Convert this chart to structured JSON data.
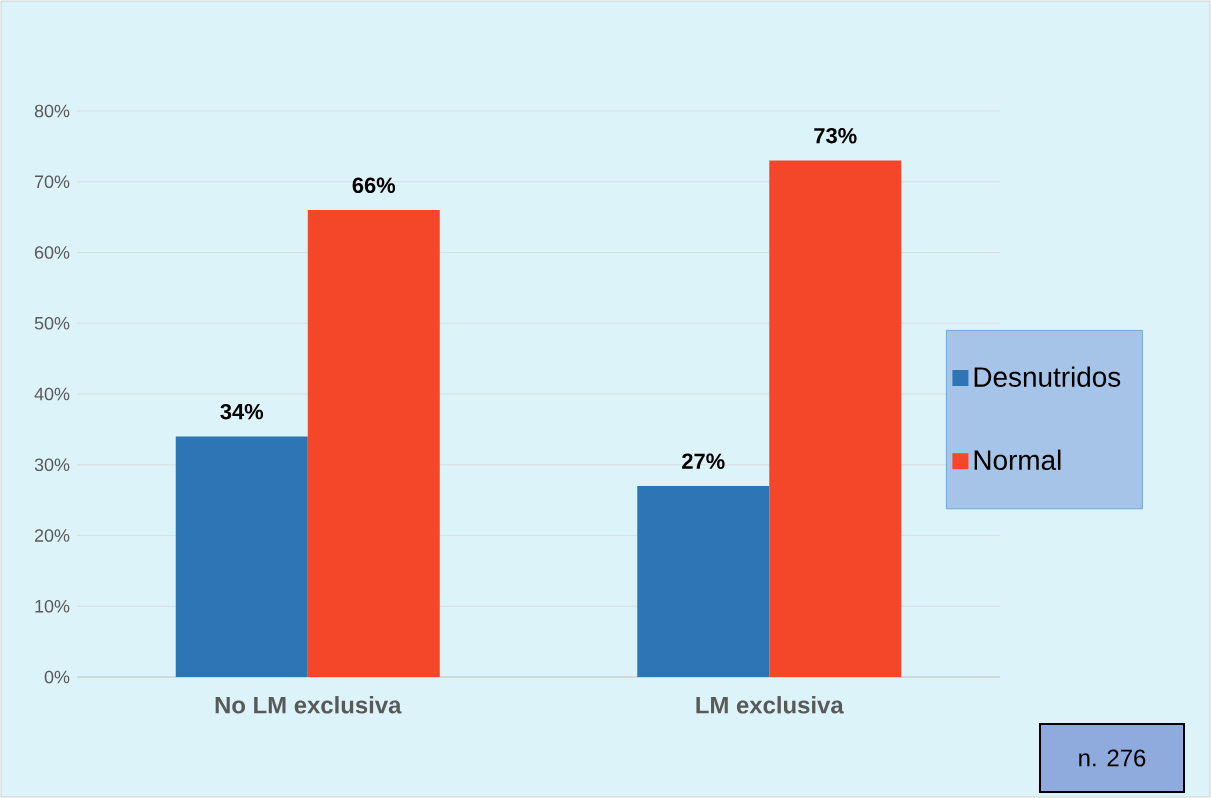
{
  "chart_data": {
    "type": "bar",
    "categories": [
      "No LM exclusiva",
      "LM exclusiva"
    ],
    "series": [
      {
        "name": "Desnutridos",
        "color": "#2e75b6",
        "values": [
          34,
          27
        ],
        "value_labels": [
          "34%",
          "27%"
        ]
      },
      {
        "name": "Normal",
        "color": "#f4472a",
        "values": [
          66,
          73
        ],
        "value_labels": [
          "66%",
          "73%"
        ]
      }
    ],
    "ylim": [
      0,
      80
    ],
    "yticks": [
      {
        "value": 0,
        "label": "0%"
      },
      {
        "value": 10,
        "label": "10%"
      },
      {
        "value": 20,
        "label": "20%"
      },
      {
        "value": 30,
        "label": "30%"
      },
      {
        "value": 40,
        "label": "40%"
      },
      {
        "value": 50,
        "label": "50%"
      },
      {
        "value": 60,
        "label": "60%"
      },
      {
        "value": 70,
        "label": "70%"
      },
      {
        "value": 80,
        "label": "80%"
      }
    ],
    "grid": "y",
    "legend": "right",
    "annotations": [
      "n. 276"
    ]
  }
}
